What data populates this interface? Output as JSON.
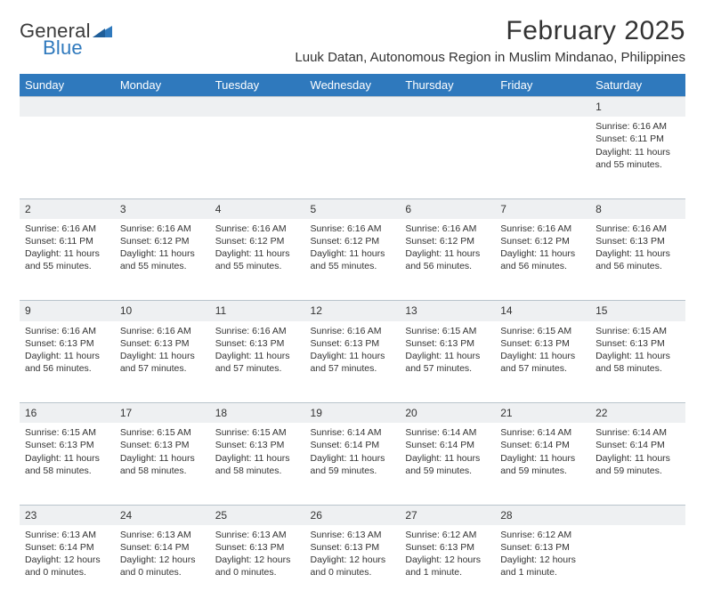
{
  "logo": {
    "text1": "General",
    "text2": "Blue",
    "color1": "#3b3b3b",
    "color2": "#2f79bd"
  },
  "title": "February 2025",
  "subtitle": "Luuk Datan, Autonomous Region in Muslim Mindanao, Philippines",
  "header_bg": "#2f79bd",
  "header_fg": "#ffffff",
  "daynum_bg": "#eef0f2",
  "border_color": "#b9c4cc",
  "text_color": "#333333",
  "weekday_fontsize": 13,
  "daynum_fontsize": 12,
  "body_fontsize": 10.5,
  "columns": [
    "Sunday",
    "Monday",
    "Tuesday",
    "Wednesday",
    "Thursday",
    "Friday",
    "Saturday"
  ],
  "weeks": [
    [
      null,
      null,
      null,
      null,
      null,
      null,
      {
        "n": "1",
        "sr": "Sunrise: 6:16 AM",
        "ss": "Sunset: 6:11 PM",
        "dl": "Daylight: 11 hours and 55 minutes."
      }
    ],
    [
      {
        "n": "2",
        "sr": "Sunrise: 6:16 AM",
        "ss": "Sunset: 6:11 PM",
        "dl": "Daylight: 11 hours and 55 minutes."
      },
      {
        "n": "3",
        "sr": "Sunrise: 6:16 AM",
        "ss": "Sunset: 6:12 PM",
        "dl": "Daylight: 11 hours and 55 minutes."
      },
      {
        "n": "4",
        "sr": "Sunrise: 6:16 AM",
        "ss": "Sunset: 6:12 PM",
        "dl": "Daylight: 11 hours and 55 minutes."
      },
      {
        "n": "5",
        "sr": "Sunrise: 6:16 AM",
        "ss": "Sunset: 6:12 PM",
        "dl": "Daylight: 11 hours and 55 minutes."
      },
      {
        "n": "6",
        "sr": "Sunrise: 6:16 AM",
        "ss": "Sunset: 6:12 PM",
        "dl": "Daylight: 11 hours and 56 minutes."
      },
      {
        "n": "7",
        "sr": "Sunrise: 6:16 AM",
        "ss": "Sunset: 6:12 PM",
        "dl": "Daylight: 11 hours and 56 minutes."
      },
      {
        "n": "8",
        "sr": "Sunrise: 6:16 AM",
        "ss": "Sunset: 6:13 PM",
        "dl": "Daylight: 11 hours and 56 minutes."
      }
    ],
    [
      {
        "n": "9",
        "sr": "Sunrise: 6:16 AM",
        "ss": "Sunset: 6:13 PM",
        "dl": "Daylight: 11 hours and 56 minutes."
      },
      {
        "n": "10",
        "sr": "Sunrise: 6:16 AM",
        "ss": "Sunset: 6:13 PM",
        "dl": "Daylight: 11 hours and 57 minutes."
      },
      {
        "n": "11",
        "sr": "Sunrise: 6:16 AM",
        "ss": "Sunset: 6:13 PM",
        "dl": "Daylight: 11 hours and 57 minutes."
      },
      {
        "n": "12",
        "sr": "Sunrise: 6:16 AM",
        "ss": "Sunset: 6:13 PM",
        "dl": "Daylight: 11 hours and 57 minutes."
      },
      {
        "n": "13",
        "sr": "Sunrise: 6:15 AM",
        "ss": "Sunset: 6:13 PM",
        "dl": "Daylight: 11 hours and 57 minutes."
      },
      {
        "n": "14",
        "sr": "Sunrise: 6:15 AM",
        "ss": "Sunset: 6:13 PM",
        "dl": "Daylight: 11 hours and 57 minutes."
      },
      {
        "n": "15",
        "sr": "Sunrise: 6:15 AM",
        "ss": "Sunset: 6:13 PM",
        "dl": "Daylight: 11 hours and 58 minutes."
      }
    ],
    [
      {
        "n": "16",
        "sr": "Sunrise: 6:15 AM",
        "ss": "Sunset: 6:13 PM",
        "dl": "Daylight: 11 hours and 58 minutes."
      },
      {
        "n": "17",
        "sr": "Sunrise: 6:15 AM",
        "ss": "Sunset: 6:13 PM",
        "dl": "Daylight: 11 hours and 58 minutes."
      },
      {
        "n": "18",
        "sr": "Sunrise: 6:15 AM",
        "ss": "Sunset: 6:13 PM",
        "dl": "Daylight: 11 hours and 58 minutes."
      },
      {
        "n": "19",
        "sr": "Sunrise: 6:14 AM",
        "ss": "Sunset: 6:14 PM",
        "dl": "Daylight: 11 hours and 59 minutes."
      },
      {
        "n": "20",
        "sr": "Sunrise: 6:14 AM",
        "ss": "Sunset: 6:14 PM",
        "dl": "Daylight: 11 hours and 59 minutes."
      },
      {
        "n": "21",
        "sr": "Sunrise: 6:14 AM",
        "ss": "Sunset: 6:14 PM",
        "dl": "Daylight: 11 hours and 59 minutes."
      },
      {
        "n": "22",
        "sr": "Sunrise: 6:14 AM",
        "ss": "Sunset: 6:14 PM",
        "dl": "Daylight: 11 hours and 59 minutes."
      }
    ],
    [
      {
        "n": "23",
        "sr": "Sunrise: 6:13 AM",
        "ss": "Sunset: 6:14 PM",
        "dl": "Daylight: 12 hours and 0 minutes."
      },
      {
        "n": "24",
        "sr": "Sunrise: 6:13 AM",
        "ss": "Sunset: 6:14 PM",
        "dl": "Daylight: 12 hours and 0 minutes."
      },
      {
        "n": "25",
        "sr": "Sunrise: 6:13 AM",
        "ss": "Sunset: 6:13 PM",
        "dl": "Daylight: 12 hours and 0 minutes."
      },
      {
        "n": "26",
        "sr": "Sunrise: 6:13 AM",
        "ss": "Sunset: 6:13 PM",
        "dl": "Daylight: 12 hours and 0 minutes."
      },
      {
        "n": "27",
        "sr": "Sunrise: 6:12 AM",
        "ss": "Sunset: 6:13 PM",
        "dl": "Daylight: 12 hours and 1 minute."
      },
      {
        "n": "28",
        "sr": "Sunrise: 6:12 AM",
        "ss": "Sunset: 6:13 PM",
        "dl": "Daylight: 12 hours and 1 minute."
      },
      null
    ]
  ]
}
